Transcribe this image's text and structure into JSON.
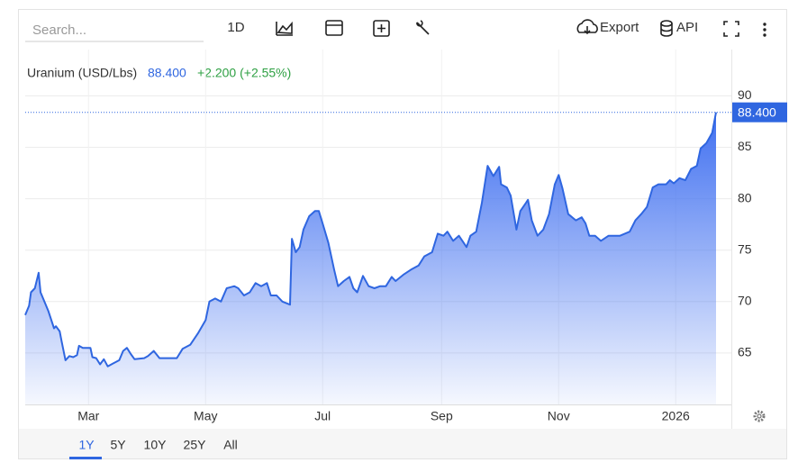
{
  "toolbar": {
    "search_placeholder": "Search...",
    "interval": "1D",
    "export": "Export",
    "api": "API"
  },
  "legend": {
    "name": "Uranium (USD/Lbs)",
    "price": "88.400",
    "change": "+2.200 (+2.55%)"
  },
  "range_buttons": [
    "1Y",
    "5Y",
    "10Y",
    "25Y",
    "All"
  ],
  "chart_data": {
    "type": "area",
    "color": "#2f66e0",
    "grid": true,
    "x": [
      26,
      28,
      29,
      31,
      33,
      34,
      36,
      38,
      41,
      42,
      44,
      45,
      47,
      49,
      51,
      53,
      54,
      56,
      60,
      61,
      63,
      65,
      67,
      69,
      72,
      75,
      77,
      79,
      81,
      83,
      88,
      90,
      93,
      96,
      102,
      105,
      108,
      112,
      116,
      120,
      122,
      125,
      128,
      131,
      135,
      137,
      140,
      143,
      146,
      149,
      152,
      154,
      157,
      160,
      164,
      165,
      167,
      169,
      171,
      174,
      177,
      179,
      181,
      184,
      187,
      189,
      192,
      195,
      197,
      199,
      202,
      205,
      208,
      211,
      214,
      217,
      219,
      223,
      227,
      231,
      234,
      238,
      241,
      244,
      246,
      249,
      252,
      256,
      258,
      261,
      264,
      267,
      270,
      273,
      274,
      277,
      279,
      282,
      284,
      287,
      288,
      290,
      293,
      296,
      299,
      302,
      304,
      306,
      309,
      313,
      316,
      318,
      320,
      323,
      326,
      330,
      333,
      336,
      341,
      344,
      347,
      350,
      353,
      356,
      360,
      362,
      364,
      367,
      370,
      373,
      376,
      378,
      381,
      384,
      386
    ],
    "values": [
      68.7,
      69.6,
      70.9,
      71.3,
      72.8,
      70.9,
      70.0,
      69.1,
      67.4,
      67.6,
      67.1,
      66.1,
      64.3,
      64.7,
      64.6,
      64.8,
      65.7,
      65.5,
      65.5,
      64.6,
      64.5,
      63.9,
      64.4,
      63.7,
      64.0,
      64.3,
      65.2,
      65.5,
      64.9,
      64.4,
      64.5,
      64.7,
      65.2,
      64.5,
      64.5,
      64.5,
      65.4,
      65.8,
      66.9,
      68.2,
      70.0,
      70.3,
      70.0,
      71.3,
      71.5,
      71.3,
      70.6,
      70.9,
      71.8,
      71.5,
      71.8,
      70.6,
      70.6,
      70.0,
      69.7,
      76.1,
      74.8,
      75.3,
      77.0,
      78.3,
      78.8,
      78.8,
      77.6,
      75.7,
      73.1,
      71.5,
      72.0,
      72.4,
      71.3,
      70.9,
      72.5,
      71.5,
      71.3,
      71.5,
      71.5,
      72.4,
      72.0,
      72.6,
      73.1,
      73.5,
      74.4,
      74.8,
      76.6,
      76.4,
      76.8,
      75.9,
      76.4,
      75.3,
      76.4,
      76.8,
      79.6,
      83.2,
      82.2,
      83.1,
      81.4,
      81.1,
      80.3,
      77.0,
      78.8,
      79.6,
      79.9,
      77.9,
      76.4,
      77.0,
      78.5,
      81.4,
      82.3,
      81.0,
      78.5,
      77.9,
      78.2,
      77.6,
      76.4,
      76.4,
      75.9,
      76.4,
      76.4,
      76.4,
      76.8,
      77.9,
      78.5,
      79.2,
      81.1,
      81.4,
      81.4,
      81.8,
      81.5,
      82.0,
      81.8,
      82.9,
      83.2,
      84.9,
      85.4,
      86.4,
      88.4
    ],
    "xlim": [
      26,
      394
    ],
    "xticks": [
      {
        "value": 59,
        "label": "Mar"
      },
      {
        "value": 120,
        "label": "May"
      },
      {
        "value": 181,
        "label": "Jul"
      },
      {
        "value": 243,
        "label": "Sep"
      },
      {
        "value": 304,
        "label": "Nov"
      },
      {
        "value": 365,
        "label": "2026"
      }
    ],
    "ylim": [
      60,
      91
    ],
    "yticks": [
      65,
      70,
      75,
      80,
      85,
      90
    ]
  }
}
